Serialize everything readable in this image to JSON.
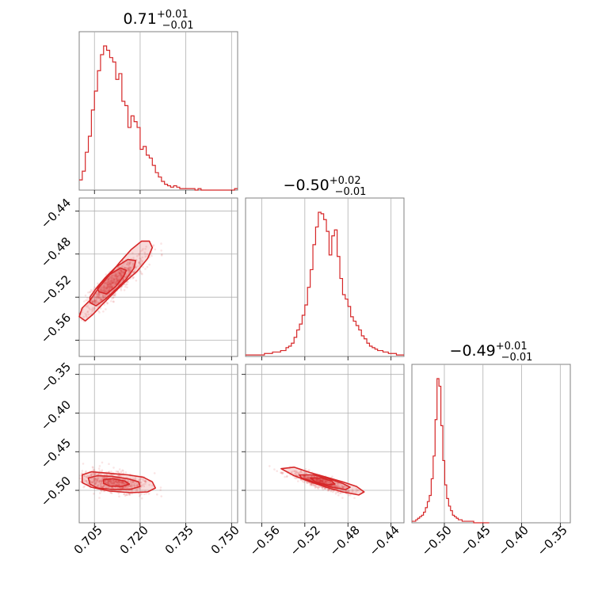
{
  "colors": {
    "accent": "#d62728",
    "frame": "#808080",
    "grid": "#b0b0b0"
  },
  "chart_data": {
    "type": "corner",
    "grid": true,
    "parameters": [
      {
        "title": {
          "value": "0.71",
          "plus": "+0.01",
          "minus": "−0.01"
        },
        "range": [
          0.7,
          0.752
        ],
        "ticks": [
          0.705,
          0.72,
          0.735,
          0.75
        ],
        "tick_labels": [
          "0.705",
          "0.720",
          "0.735",
          "0.750"
        ]
      },
      {
        "title": {
          "value": "−0.50",
          "plus": "+0.02",
          "minus": "−0.01"
        },
        "range": [
          -0.575,
          -0.428
        ],
        "ticks": [
          -0.56,
          -0.52,
          -0.48,
          -0.44
        ],
        "tick_labels": [
          "−0.56",
          "−0.52",
          "−0.48",
          "−0.44"
        ]
      },
      {
        "title": {
          "value": "−0.49",
          "plus": "+0.01",
          "minus": "−0.01"
        },
        "range": [
          -0.542,
          -0.337
        ],
        "ticks": [
          -0.5,
          -0.45,
          -0.4,
          -0.35
        ],
        "tick_labels": [
          "−0.50",
          "−0.45",
          "−0.40",
          "−0.35"
        ]
      }
    ],
    "histograms": [
      {
        "param": 0,
        "bins": [
          0.7,
          0.701,
          0.702,
          0.703,
          0.704,
          0.705,
          0.706,
          0.707,
          0.708,
          0.709,
          0.71,
          0.711,
          0.712,
          0.713,
          0.714,
          0.715,
          0.716,
          0.717,
          0.718,
          0.719,
          0.72,
          0.721,
          0.722,
          0.723,
          0.724,
          0.725,
          0.726,
          0.727,
          0.728,
          0.729,
          0.73,
          0.731,
          0.732,
          0.733,
          0.734,
          0.735,
          0.736,
          0.737,
          0.738,
          0.739,
          0.74,
          0.741,
          0.742,
          0.743,
          0.744,
          0.745,
          0.746,
          0.747,
          0.748,
          0.749,
          0.75,
          0.751,
          0.752
        ],
        "counts": [
          0.07,
          0.13,
          0.26,
          0.37,
          0.55,
          0.68,
          0.82,
          0.93,
          0.99,
          0.96,
          0.91,
          0.88,
          0.76,
          0.8,
          0.61,
          0.58,
          0.43,
          0.51,
          0.47,
          0.43,
          0.28,
          0.3,
          0.24,
          0.22,
          0.17,
          0.12,
          0.09,
          0.06,
          0.04,
          0.03,
          0.02,
          0.03,
          0.02,
          0.01,
          0.01,
          0.01,
          0.01,
          0.01,
          0.0,
          0.01,
          0.0,
          0.0,
          0.0,
          0.0,
          0.0,
          0.0,
          0.0,
          0.0,
          0.0,
          0.0,
          0.0,
          0.01
        ]
      },
      {
        "param": 1,
        "bins": [
          -0.575,
          -0.5725,
          -0.57,
          -0.5675,
          -0.565,
          -0.5625,
          -0.56,
          -0.5575,
          -0.555,
          -0.5525,
          -0.55,
          -0.5475,
          -0.545,
          -0.5425,
          -0.54,
          -0.5375,
          -0.535,
          -0.5325,
          -0.53,
          -0.5275,
          -0.525,
          -0.5225,
          -0.52,
          -0.5175,
          -0.515,
          -0.5125,
          -0.51,
          -0.5075,
          -0.505,
          -0.5025,
          -0.5,
          -0.4975,
          -0.495,
          -0.4925,
          -0.49,
          -0.4875,
          -0.485,
          -0.4825,
          -0.48,
          -0.4775,
          -0.475,
          -0.4725,
          -0.47,
          -0.4675,
          -0.465,
          -0.4625,
          -0.46,
          -0.4575,
          -0.455,
          -0.4525,
          -0.45,
          -0.4475,
          -0.445,
          -0.4425,
          -0.44,
          -0.4375,
          -0.435,
          -0.4325,
          -0.43,
          -0.428
        ],
        "counts": [
          0.01,
          0.01,
          0.01,
          0.01,
          0.01,
          0.01,
          0.01,
          0.02,
          0.02,
          0.02,
          0.03,
          0.03,
          0.03,
          0.04,
          0.04,
          0.06,
          0.07,
          0.09,
          0.13,
          0.18,
          0.22,
          0.28,
          0.35,
          0.47,
          0.59,
          0.76,
          0.88,
          0.98,
          0.97,
          0.93,
          0.85,
          0.69,
          0.82,
          0.86,
          0.68,
          0.53,
          0.42,
          0.39,
          0.34,
          0.27,
          0.24,
          0.21,
          0.18,
          0.14,
          0.12,
          0.09,
          0.07,
          0.06,
          0.05,
          0.04,
          0.04,
          0.03,
          0.03,
          0.02,
          0.02,
          0.02,
          0.01,
          0.01,
          0.01
        ]
      },
      {
        "param": 2,
        "bins": [
          -0.542,
          -0.5395,
          -0.537,
          -0.5345,
          -0.532,
          -0.5295,
          -0.527,
          -0.5245,
          -0.522,
          -0.5195,
          -0.517,
          -0.5145,
          -0.512,
          -0.5095,
          -0.507,
          -0.5045,
          -0.502,
          -0.4995,
          -0.497,
          -0.4945,
          -0.492,
          -0.4895,
          -0.487,
          -0.4845,
          -0.482,
          -0.4795,
          -0.477,
          -0.4745,
          -0.472,
          -0.4695,
          -0.467,
          -0.4645,
          -0.462,
          -0.4595,
          -0.457,
          -0.4545,
          -0.452,
          -0.4495,
          -0.447,
          -0.4445,
          -0.442
        ],
        "counts": [
          0.01,
          0.01,
          0.02,
          0.03,
          0.04,
          0.05,
          0.07,
          0.1,
          0.14,
          0.18,
          0.29,
          0.44,
          0.68,
          0.95,
          0.9,
          0.64,
          0.41,
          0.25,
          0.16,
          0.11,
          0.08,
          0.05,
          0.04,
          0.03,
          0.02,
          0.02,
          0.01,
          0.01,
          0.01,
          0.01,
          0.01,
          0.01,
          0.0,
          0.0,
          0.0,
          0.0,
          0.0,
          0.0,
          0.0,
          0.0
        ]
      }
    ],
    "scatter_panels": [
      {
        "x_param": 0,
        "y_param": 1,
        "samples": {
          "mean": [
            0.7115,
            -0.5075
          ],
          "sd": [
            0.005,
            0.013
          ],
          "rho": 0.88,
          "n": 700,
          "seed": 7
        },
        "contours": [
          {
            "level": "outer",
            "fill_opacity": 0.17,
            "x": [
              0.7,
              0.702,
              0.7045,
              0.7075,
              0.711,
              0.715,
              0.719,
              0.7225,
              0.724,
              0.723,
              0.7205,
              0.717,
              0.7135,
              0.71,
              0.7065,
              0.7035,
              0.701,
              0.7
            ],
            "y": [
              -0.538,
              -0.542,
              -0.536,
              -0.527,
              -0.517,
              -0.506,
              -0.496,
              -0.484,
              -0.474,
              -0.468,
              -0.468,
              -0.476,
              -0.487,
              -0.499,
              -0.511,
              -0.523,
              -0.53,
              -0.538
            ]
          },
          {
            "level": "middle",
            "fill_opacity": 0.22,
            "x": [
              0.7035,
              0.7055,
              0.7085,
              0.712,
              0.7155,
              0.718,
              0.7185,
              0.716,
              0.712,
              0.7085,
              0.7055,
              0.7035,
              0.7035
            ],
            "y": [
              -0.525,
              -0.528,
              -0.522,
              -0.513,
              -0.503,
              -0.493,
              -0.486,
              -0.485,
              -0.492,
              -0.502,
              -0.512,
              -0.52,
              -0.525
            ]
          },
          {
            "level": "inner",
            "fill_opacity": 0.3,
            "x": [
              0.7065,
              0.709,
              0.712,
              0.7145,
              0.7155,
              0.7135,
              0.71,
              0.707,
              0.706,
              0.7065
            ],
            "y": [
              -0.515,
              -0.517,
              -0.51,
              -0.501,
              -0.495,
              -0.493,
              -0.499,
              -0.507,
              -0.512,
              -0.515
            ]
          }
        ]
      },
      {
        "x_param": 0,
        "y_param": 2,
        "samples": {
          "mean": [
            0.7115,
            -0.4895
          ],
          "sd": [
            0.006,
            0.0075
          ],
          "rho": -0.4,
          "n": 600,
          "seed": 13
        },
        "contours": [
          {
            "level": "outer",
            "fill_opacity": 0.17,
            "x": [
              0.701,
              0.704,
              0.71,
              0.716,
              0.721,
              0.724,
              0.725,
              0.7225,
              0.717,
              0.71,
              0.704,
              0.701,
              0.701
            ],
            "y": [
              -0.48,
              -0.476,
              -0.478,
              -0.48,
              -0.483,
              -0.489,
              -0.497,
              -0.502,
              -0.503,
              -0.501,
              -0.496,
              -0.49,
              -0.48
            ]
          },
          {
            "level": "middle",
            "fill_opacity": 0.22,
            "x": [
              0.703,
              0.706,
              0.711,
              0.716,
              0.7195,
              0.72,
              0.717,
              0.711,
              0.706,
              0.7035,
              0.703
            ],
            "y": [
              -0.484,
              -0.481,
              -0.482,
              -0.485,
              -0.489,
              -0.495,
              -0.4985,
              -0.499,
              -0.497,
              -0.492,
              -0.484
            ]
          },
          {
            "level": "inner",
            "fill_opacity": 0.3,
            "x": [
              0.708,
              0.711,
              0.715,
              0.7165,
              0.714,
              0.71,
              0.708,
              0.708
            ],
            "y": [
              -0.486,
              -0.485,
              -0.488,
              -0.492,
              -0.495,
              -0.4945,
              -0.491,
              -0.486
            ]
          }
        ]
      },
      {
        "x_param": 1,
        "y_param": 2,
        "samples": {
          "mean": [
            -0.505,
            -0.49
          ],
          "sd": [
            0.014,
            0.007
          ],
          "rho": -0.85,
          "n": 650,
          "seed": 21
        },
        "contours": [
          {
            "level": "outer",
            "fill_opacity": 0.17,
            "x": [
              -0.542,
              -0.53,
              -0.515,
              -0.5,
              -0.485,
              -0.472,
              -0.465,
              -0.47,
              -0.485,
              -0.5,
              -0.515,
              -0.53,
              -0.542
            ],
            "y": [
              -0.472,
              -0.47,
              -0.477,
              -0.483,
              -0.489,
              -0.495,
              -0.502,
              -0.506,
              -0.502,
              -0.496,
              -0.489,
              -0.481,
              -0.472
            ]
          },
          {
            "level": "middle",
            "fill_opacity": 0.22,
            "x": [
              -0.525,
              -0.512,
              -0.498,
              -0.485,
              -0.478,
              -0.482,
              -0.495,
              -0.51,
              -0.523,
              -0.525
            ],
            "y": [
              -0.48,
              -0.48,
              -0.485,
              -0.491,
              -0.496,
              -0.499,
              -0.496,
              -0.49,
              -0.484,
              -0.48
            ]
          },
          {
            "level": "inner",
            "fill_opacity": 0.3,
            "x": [
              -0.515,
              -0.505,
              -0.495,
              -0.492,
              -0.5,
              -0.51,
              -0.515
            ],
            "y": [
              -0.484,
              -0.484,
              -0.488,
              -0.492,
              -0.493,
              -0.489,
              -0.484
            ]
          }
        ]
      }
    ]
  }
}
